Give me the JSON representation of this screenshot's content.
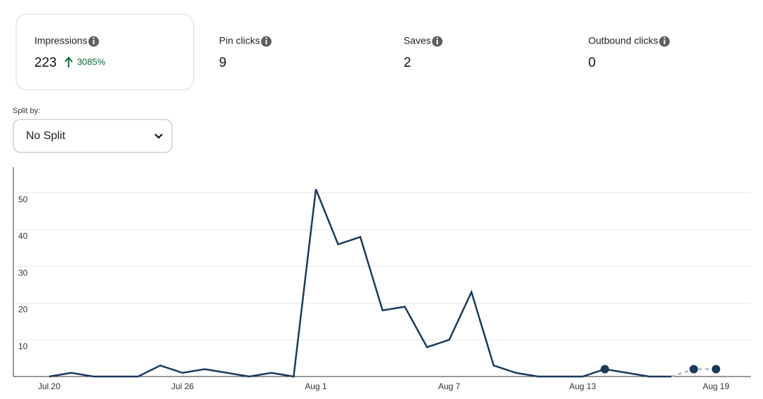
{
  "metrics": [
    {
      "label": "Impressions",
      "value": "223",
      "change": "3085%"
    },
    {
      "label": "Pin clicks",
      "value": "9"
    },
    {
      "label": "Saves",
      "value": "2"
    },
    {
      "label": "Outbound clicks",
      "value": "0"
    }
  ],
  "split": {
    "label": "Split by:",
    "selected": "No Split"
  },
  "chart_data": {
    "type": "line",
    "categories": [
      "Jul 20",
      null,
      null,
      null,
      null,
      null,
      "Jul 26",
      null,
      null,
      null,
      null,
      null,
      "Aug 1",
      null,
      null,
      null,
      null,
      null,
      "Aug 7",
      null,
      null,
      null,
      null,
      null,
      "Aug 13",
      null,
      null,
      null,
      null,
      null,
      "Aug 19"
    ],
    "series": [
      {
        "color": "#1b3a5c",
        "values": [
          0,
          1,
          0,
          0,
          0,
          3,
          1,
          2,
          1,
          0,
          1,
          0,
          51,
          36,
          38,
          18,
          19,
          8,
          10,
          23,
          3,
          1,
          0,
          0,
          0,
          2,
          1,
          0,
          0,
          2,
          2
        ]
      }
    ],
    "ylim": [
      0,
      57
    ],
    "yticks": [
      10,
      20,
      30,
      40,
      50
    ],
    "grid": true
  }
}
